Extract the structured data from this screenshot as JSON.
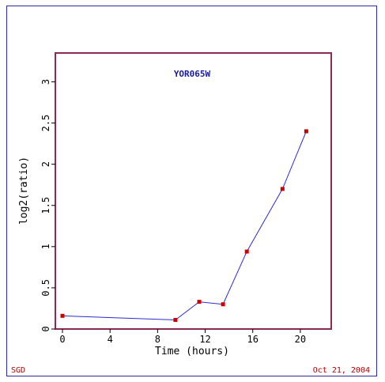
{
  "footer": {
    "left": "SGD",
    "right": "Oct 21, 2004"
  },
  "colors": {
    "frame": "#2b2b9a",
    "plot_border": "#8b2a57",
    "line": "#2b2bcf",
    "marker": "#cc0000",
    "title": "#1a1a99",
    "axis_text": "#000000",
    "footer_text": "#b00000"
  },
  "chart_data": {
    "type": "line",
    "title": "YOR065W",
    "xlabel": "Time (hours)",
    "ylabel": "log2(ratio)",
    "xlim": [
      -0.6,
      22.6
    ],
    "ylim": [
      0,
      3.35
    ],
    "xticks": [
      0,
      4,
      8,
      12,
      16,
      20
    ],
    "yticks": [
      0,
      0.5,
      1,
      1.5,
      2,
      2.5,
      3
    ],
    "xtick_labels": [
      "0",
      "4",
      "8",
      "12",
      "16",
      "20"
    ],
    "ytick_labels": [
      "0",
      "0.5",
      "1",
      "1.5",
      "2",
      "2.5",
      "3"
    ],
    "grid": false,
    "series": [
      {
        "x": [
          0,
          9.5,
          11.5,
          13.5,
          15.5,
          18.5,
          20.5
        ],
        "y": [
          0.16,
          0.11,
          0.33,
          0.3,
          0.94,
          1.7,
          2.4
        ]
      }
    ]
  }
}
